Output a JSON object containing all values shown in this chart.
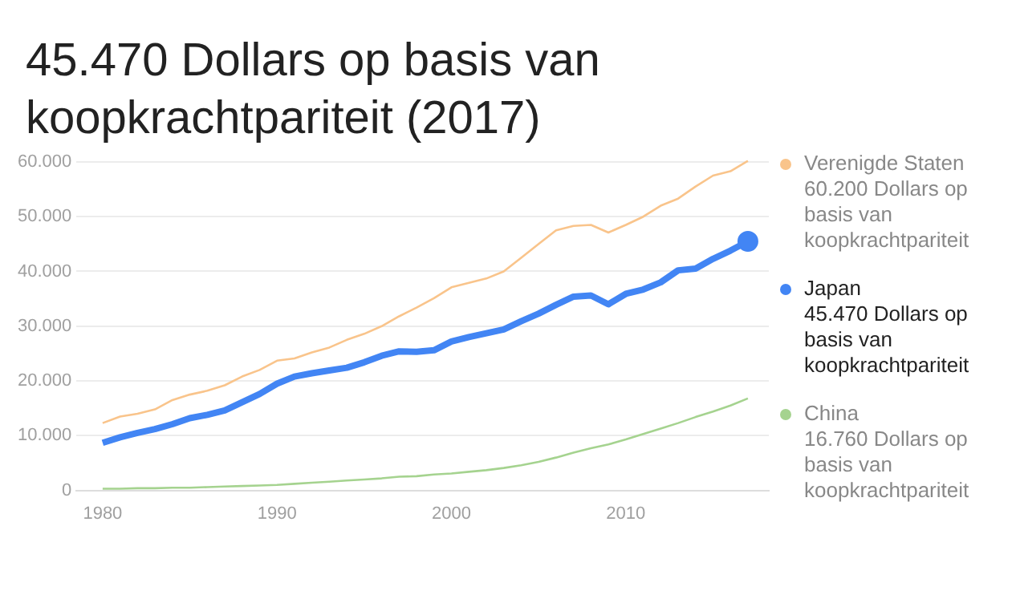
{
  "chart_data": {
    "type": "line",
    "title": "45.470 Dollars op basis van koopkrachtpariteit (2017)",
    "x": [
      1980,
      1981,
      1982,
      1983,
      1984,
      1985,
      1986,
      1987,
      1988,
      1989,
      1990,
      1991,
      1992,
      1993,
      1994,
      1995,
      1996,
      1997,
      1998,
      1999,
      2000,
      2001,
      2002,
      2003,
      2004,
      2005,
      2006,
      2007,
      2008,
      2009,
      2010,
      2011,
      2012,
      2013,
      2014,
      2015,
      2016,
      2017
    ],
    "series": [
      {
        "name": "Verenigde Staten",
        "color": "#f9c48b",
        "values": [
          12300,
          13500,
          14000,
          14800,
          16500,
          17500,
          18200,
          19200,
          20800,
          22000,
          23700,
          24100,
          25200,
          26100,
          27500,
          28600,
          30000,
          31800,
          33400,
          35100,
          37100,
          37900,
          38700,
          40000,
          42500,
          45000,
          47500,
          48300,
          48500,
          47100,
          48500,
          50000,
          52000,
          53300,
          55500,
          57500,
          58300,
          60200
        ]
      },
      {
        "name": "Japan",
        "color": "#4285f4",
        "values": [
          8700,
          9700,
          10500,
          11200,
          12100,
          13200,
          13800,
          14600,
          16100,
          17600,
          19500,
          20800,
          21400,
          21900,
          22400,
          23400,
          24600,
          25400,
          25300,
          25600,
          27200,
          28000,
          28700,
          29400,
          30900,
          32300,
          33900,
          35400,
          35600,
          34000,
          35900,
          36700,
          38000,
          40200,
          40500,
          42300,
          43800,
          45500
        ]
      },
      {
        "name": "China",
        "color": "#a5d38f",
        "values": [
          300,
          300,
          400,
          400,
          500,
          500,
          600,
          700,
          800,
          900,
          1000,
          1200,
          1400,
          1600,
          1800,
          2000,
          2200,
          2500,
          2600,
          2900,
          3100,
          3400,
          3700,
          4100,
          4600,
          5200,
          6000,
          6900,
          7700,
          8400,
          9300,
          10300,
          11300,
          12300,
          13400,
          14400,
          15500,
          16800
        ]
      },
      {
        "type": "scatter",
        "color": "#4285f4",
        "marker": "circle",
        "x": [
          2017
        ],
        "values": [
          45500
        ]
      }
    ],
    "annotations": [
      "60.200 Dollars op basis van koopkrachtpariteit",
      "45.470 Dollars op basis van koopkrachtpariteit",
      "16.760 Dollars op basis van koopkrachtpariteit"
    ],
    "xlim": [
      1978.5,
      2018.2
    ],
    "xticks": [
      1980,
      1990,
      2000,
      2010
    ],
    "ylim": [
      0,
      60400
    ],
    "yticks": [
      {
        "value": 0,
        "label": "0"
      },
      {
        "value": 10000,
        "label": "10.000"
      },
      {
        "value": 20000,
        "label": "20.000"
      },
      {
        "value": 30000,
        "label": "30.000"
      },
      {
        "value": 40000,
        "label": "40.000"
      },
      {
        "value": 50000,
        "label": "50.000"
      },
      {
        "value": 60000,
        "label": "60.000"
      }
    ],
    "grid": "y",
    "legend": "right",
    "line_style": "solid"
  }
}
